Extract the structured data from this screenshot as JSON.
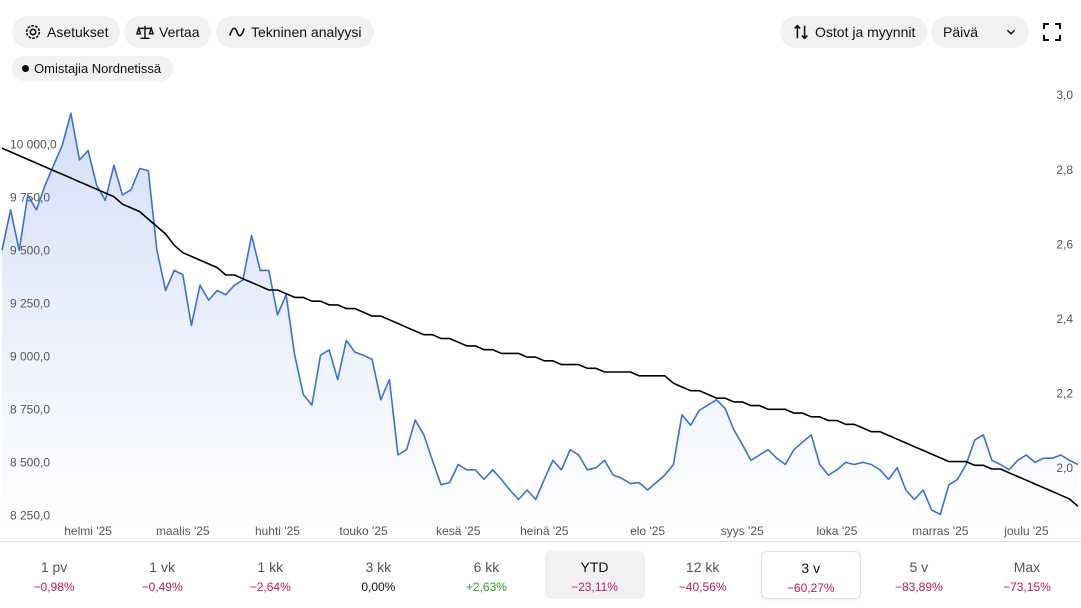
{
  "toolbar": {
    "buttons": [
      "Asetukset",
      "Vertaa",
      "Tekninen analyysi"
    ],
    "trades": "Ostot ja myynnit",
    "interval": "Päivä"
  },
  "chart_data": {
    "type": "line",
    "categories": [
      null,
      null,
      null,
      null,
      null,
      null,
      null,
      null,
      null,
      null,
      "helmi '25",
      null,
      null,
      null,
      null,
      null,
      null,
      null,
      null,
      null,
      null,
      "maalis '25",
      null,
      null,
      null,
      null,
      null,
      null,
      null,
      null,
      null,
      null,
      "huhti '25",
      null,
      null,
      null,
      null,
      null,
      null,
      null,
      null,
      null,
      "touko '25",
      null,
      null,
      null,
      null,
      null,
      null,
      null,
      null,
      null,
      null,
      "kesä '25",
      null,
      null,
      null,
      null,
      null,
      null,
      null,
      null,
      null,
      "heinä '25",
      null,
      null,
      null,
      null,
      null,
      null,
      null,
      null,
      null,
      null,
      null,
      "elo '25",
      null,
      null,
      null,
      null,
      null,
      null,
      null,
      null,
      null,
      null,
      "syys '25",
      null,
      null,
      null,
      null,
      null,
      null,
      null,
      null,
      null,
      null,
      "loka '25",
      null,
      null,
      null,
      null,
      null,
      null,
      null,
      null,
      null,
      null,
      null,
      "marras '25",
      null,
      null,
      null,
      null,
      null,
      null,
      null,
      null,
      null,
      "joulu '25",
      null,
      null,
      null,
      null,
      null,
      null
    ],
    "series": [
      {
        "color": "#3b6fe0",
        "area": true,
        "values": [
          9505,
          9695,
          9505,
          9765,
          9695,
          9810,
          9905,
          10000,
          10150,
          9930,
          9975,
          9810,
          9740,
          9905,
          9765,
          9790,
          9890,
          9880,
          9505,
          9315,
          9410,
          9390,
          9150,
          9340,
          9270,
          9315,
          9295,
          9340,
          9365,
          9575,
          9410,
          9410,
          9200,
          9295,
          9010,
          8825,
          8775,
          9010,
          9035,
          8895,
          9080,
          9025,
          9010,
          8990,
          8800,
          8895,
          8540,
          8565,
          8705,
          8635,
          8515,
          8400,
          8410,
          8495,
          8470,
          8470,
          8425,
          8470,
          8425,
          8375,
          8330,
          8375,
          8330,
          8425,
          8515,
          8470,
          8565,
          8540,
          8470,
          8480,
          8515,
          8445,
          8430,
          8405,
          8410,
          8375,
          8410,
          8445,
          8495,
          8730,
          8680,
          8750,
          8775,
          8800,
          8760,
          8660,
          8590,
          8515,
          8540,
          8565,
          8525,
          8495,
          8565,
          8600,
          8635,
          8495,
          8445,
          8470,
          8505,
          8495,
          8505,
          8495,
          8470,
          8425,
          8480,
          8375,
          8330,
          8375,
          8280,
          8260,
          8400,
          8425,
          8495,
          8610,
          8635,
          8515,
          8495,
          8470,
          8515,
          8540,
          8505,
          8525,
          8525,
          8540,
          8515,
          8495
        ]
      },
      {
        "name": "Omistajia Nordnetissä",
        "color": "#000000",
        "axis": "y2",
        "values": [
          2.86,
          2.85,
          2.84,
          2.83,
          2.82,
          2.81,
          2.8,
          2.79,
          2.78,
          2.77,
          2.76,
          2.75,
          2.74,
          2.73,
          2.71,
          2.7,
          2.69,
          2.67,
          2.65,
          2.63,
          2.6,
          2.58,
          2.57,
          2.56,
          2.55,
          2.54,
          2.52,
          2.52,
          2.51,
          2.5,
          2.49,
          2.48,
          2.48,
          2.47,
          2.46,
          2.46,
          2.45,
          2.45,
          2.44,
          2.44,
          2.43,
          2.43,
          2.42,
          2.41,
          2.41,
          2.4,
          2.39,
          2.38,
          2.37,
          2.36,
          2.36,
          2.35,
          2.35,
          2.34,
          2.33,
          2.33,
          2.32,
          2.32,
          2.31,
          2.31,
          2.31,
          2.3,
          2.3,
          2.29,
          2.29,
          2.28,
          2.28,
          2.28,
          2.27,
          2.27,
          2.26,
          2.26,
          2.26,
          2.26,
          2.25,
          2.25,
          2.25,
          2.25,
          2.23,
          2.22,
          2.21,
          2.21,
          2.2,
          2.19,
          2.19,
          2.18,
          2.18,
          2.17,
          2.17,
          2.16,
          2.16,
          2.16,
          2.15,
          2.15,
          2.14,
          2.14,
          2.13,
          2.13,
          2.12,
          2.12,
          2.11,
          2.1,
          2.1,
          2.09,
          2.08,
          2.07,
          2.06,
          2.05,
          2.04,
          2.03,
          2.02,
          2.02,
          2.02,
          2.01,
          2.01,
          2.0,
          2.0,
          1.99,
          1.98,
          1.97,
          1.96,
          1.95,
          1.94,
          1.93,
          1.92,
          1.9
        ]
      }
    ],
    "ylim": [
      8210,
      10260
    ],
    "yticks": [
      {
        "value": 8250,
        "label": "8 250,0"
      },
      {
        "value": 8500,
        "label": "8 500,0"
      },
      {
        "value": 8750,
        "label": "8 750,0"
      },
      {
        "value": 9000,
        "label": "9 000,0"
      },
      {
        "value": 9250,
        "label": "9 250,0"
      },
      {
        "value": 9500,
        "label": "9 500,0"
      },
      {
        "value": 9750,
        "label": "9 750,0"
      },
      {
        "value": 10000,
        "label": "10 000,0"
      }
    ],
    "y2lim": [
      1.85,
      3.016
    ],
    "y2ticks": [
      {
        "value": 2.0,
        "label": "2,0"
      },
      {
        "value": 2.2,
        "label": "2,2"
      },
      {
        "value": 2.4,
        "label": "2,4"
      },
      {
        "value": 2.6,
        "label": "2,6"
      },
      {
        "value": 2.8,
        "label": "2,8"
      },
      {
        "value": 3.0,
        "label": "3,0"
      }
    ]
  },
  "periods": {
    "selected_index": 7,
    "hover_index": 5,
    "items": [
      {
        "label": "1 pv",
        "change": "−0,98%"
      },
      {
        "label": "1 vk",
        "change": "−0,49%"
      },
      {
        "label": "1 kk",
        "change": "−2,64%"
      },
      {
        "label": "3 kk",
        "change": "0,00%"
      },
      {
        "label": "6 kk",
        "change": "+2,63%"
      },
      {
        "label": "YTD",
        "change": "−23,11%"
      },
      {
        "label": "12 kk",
        "change": "−40,56%"
      },
      {
        "label": "3 v",
        "change": "−60,27%"
      },
      {
        "label": "5 v",
        "change": "−83,89%"
      },
      {
        "label": "Max",
        "change": "−73,15%"
      }
    ]
  }
}
